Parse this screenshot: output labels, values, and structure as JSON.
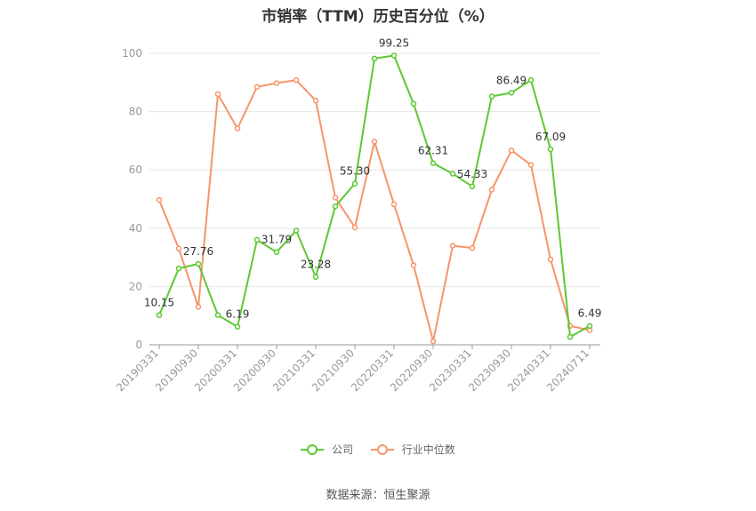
{
  "chart_data": {
    "type": "line",
    "title": "市销率（TTM）历史百分位（%）",
    "xlabel": "",
    "ylabel": "",
    "ylim": [
      0,
      100
    ],
    "yticks": [
      0,
      20,
      40,
      60,
      80,
      100
    ],
    "grid": true,
    "legend_position": "bottom",
    "x_tick_labels": [
      "20190331",
      "20190930",
      "20200331",
      "20200930",
      "20210331",
      "20210930",
      "20220331",
      "20220930",
      "20230331",
      "20230930",
      "20240331",
      "20240711"
    ],
    "series": [
      {
        "name": "公司",
        "color": "#5dc832",
        "values": [
          10.15,
          26.2,
          27.76,
          10.2,
          6.19,
          36.0,
          31.79,
          39.2,
          23.28,
          47.5,
          55.3,
          98.2,
          99.25,
          82.7,
          62.31,
          58.7,
          54.33,
          85.2,
          86.49,
          90.8,
          67.09,
          2.7,
          6.49
        ],
        "labels": [
          "10.15",
          "",
          "27.76",
          "",
          "6.19",
          "",
          "31.79",
          "",
          "23.28",
          "",
          "55.30",
          "",
          "99.25",
          "",
          "62.31",
          "",
          "54.33",
          "",
          "86.49",
          "",
          "67.09",
          "",
          "6.49"
        ]
      },
      {
        "name": "行业中位数",
        "color": "#f5956a",
        "values": [
          49.7,
          33.0,
          13.0,
          86.0,
          74.2,
          88.5,
          89.8,
          90.8,
          83.8,
          50.5,
          40.3,
          69.7,
          48.2,
          27.3,
          1.2,
          34.0,
          33.2,
          53.2,
          66.7,
          61.7,
          29.3,
          6.5,
          5.0
        ]
      }
    ],
    "footer_source": "数据来源：恒生聚源"
  }
}
